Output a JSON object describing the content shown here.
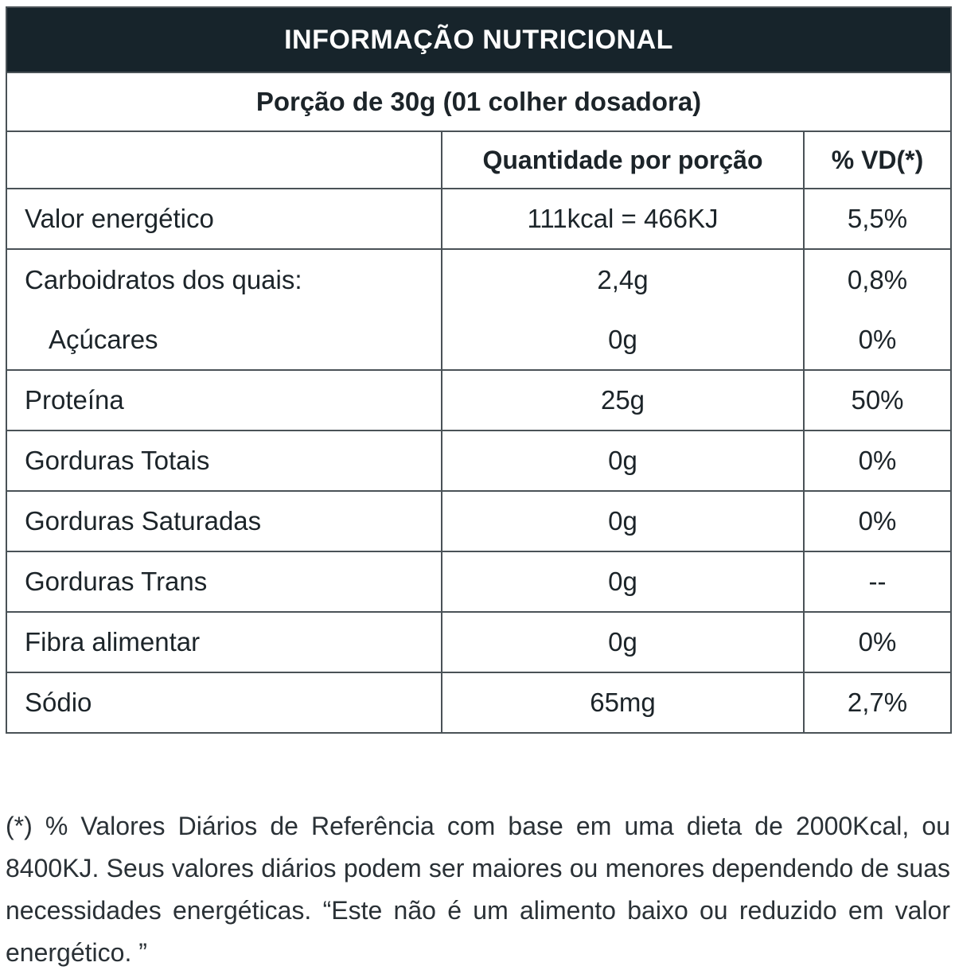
{
  "title": "INFORMAÇÃO NUTRICIONAL",
  "portion": "Porção de 30g (01 colher dosadora)",
  "columns": {
    "nutrient": "",
    "quantity": "Quantidade por porção",
    "dv": "% VD(*)"
  },
  "rows": [
    {
      "name": "Valor energético",
      "quantity": "111kcal = 466KJ",
      "dv": "5,5%"
    },
    {
      "name": "Carboidratos dos quais:",
      "quantity": "2,4g",
      "dv": "0,8%",
      "sub_name": "Açúcares",
      "sub_quantity": "0g",
      "sub_dv": "0%"
    },
    {
      "name": "Proteína",
      "quantity": "25g",
      "dv": "50%"
    },
    {
      "name": "Gorduras Totais",
      "quantity": "0g",
      "dv": "0%"
    },
    {
      "name": "Gorduras Saturadas",
      "quantity": "0g",
      "dv": "0%"
    },
    {
      "name": "Gorduras Trans",
      "quantity": "0g",
      "dv": "--"
    },
    {
      "name": "Fibra alimentar",
      "quantity": "0g",
      "dv": "0%"
    },
    {
      "name": "Sódio",
      "quantity": "65mg",
      "dv": "2,7%"
    }
  ],
  "footnote": "(*) % Valores Diários de Referência com base em uma dieta de 2000Kcal, ou 8400KJ. Seus valores diários podem ser maiores ou menores dependendo de suas necessidades energéticas. “Este não é um alimento baixo ou reduzido em valor energético. ”",
  "colors": {
    "header_bg": "#17242b",
    "header_text": "#ffffff",
    "border": "#4a5257",
    "text": "#1c2429"
  }
}
